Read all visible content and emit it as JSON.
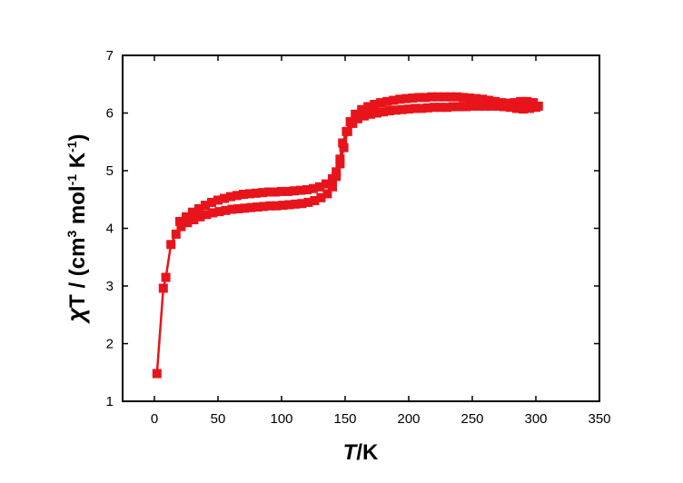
{
  "chart_data": {
    "type": "scatter",
    "xlabel": {
      "italic": "T",
      "rest": "/K"
    },
    "ylabel": {
      "chi": "χ",
      "t": "T",
      "p1": " / (cm",
      "s1": "3",
      "p2": " mol",
      "s2": "-1",
      "p3": " K",
      "s3": "-1",
      "p4": ")"
    },
    "xlim": [
      -25,
      350
    ],
    "ylim": [
      1,
      7
    ],
    "xticks": [
      0,
      50,
      100,
      150,
      200,
      250,
      300,
      350
    ],
    "yticks": [
      1,
      2,
      3,
      4,
      5,
      6,
      7
    ],
    "grid": false,
    "legend": "none",
    "colors": {
      "series": "#e8141b"
    },
    "series": [
      {
        "x": [
          2,
          7,
          9,
          13,
          17,
          21,
          26,
          31,
          36,
          41,
          46,
          51,
          56,
          61,
          66,
          71,
          76,
          81,
          86,
          91,
          96,
          101,
          106,
          111,
          116,
          121,
          126,
          131,
          136,
          140,
          143,
          146,
          149,
          152,
          156,
          160,
          165,
          170,
          175,
          180,
          185,
          190,
          195,
          200,
          205,
          210,
          215,
          220,
          225,
          230,
          235,
          240,
          245,
          250,
          255,
          260,
          265,
          270,
          275,
          280,
          285,
          290,
          295,
          300
        ],
        "y": [
          1.48,
          2.96,
          3.15,
          3.72,
          3.9,
          4.03,
          4.1,
          4.15,
          4.2,
          4.24,
          4.27,
          4.29,
          4.31,
          4.33,
          4.34,
          4.35,
          4.36,
          4.37,
          4.38,
          4.39,
          4.39,
          4.4,
          4.41,
          4.42,
          4.43,
          4.45,
          4.48,
          4.53,
          4.6,
          4.72,
          4.9,
          5.12,
          5.4,
          5.68,
          5.82,
          5.9,
          5.95,
          5.98,
          6.0,
          6.02,
          6.04,
          6.05,
          6.06,
          6.07,
          6.08,
          6.08,
          6.09,
          6.1,
          6.1,
          6.1,
          6.11,
          6.11,
          6.11,
          6.12,
          6.12,
          6.12,
          6.12,
          6.12,
          6.11,
          6.1,
          6.08,
          6.07,
          6.08,
          6.1
        ]
      },
      {
        "x": [
          20,
          25,
          30,
          35,
          40,
          45,
          50,
          55,
          60,
          65,
          70,
          75,
          80,
          85,
          90,
          95,
          100,
          105,
          110,
          115,
          120,
          125,
          130,
          135,
          140,
          143,
          146,
          148,
          151,
          154,
          158,
          163,
          168,
          173,
          178,
          183,
          188,
          193,
          198,
          203,
          208,
          213,
          218,
          223,
          228,
          233,
          238,
          243,
          248,
          253,
          258,
          263,
          268,
          273,
          278,
          283,
          288,
          293,
          298,
          302
        ],
        "y": [
          4.12,
          4.2,
          4.28,
          4.34,
          4.4,
          4.45,
          4.49,
          4.52,
          4.55,
          4.57,
          4.59,
          4.6,
          4.61,
          4.62,
          4.63,
          4.63,
          4.64,
          4.64,
          4.65,
          4.66,
          4.67,
          4.69,
          4.72,
          4.77,
          4.86,
          4.98,
          5.2,
          5.48,
          5.68,
          5.85,
          5.98,
          6.06,
          6.11,
          6.15,
          6.18,
          6.2,
          6.22,
          6.24,
          6.25,
          6.26,
          6.27,
          6.27,
          6.28,
          6.28,
          6.28,
          6.28,
          6.28,
          6.27,
          6.26,
          6.25,
          6.24,
          6.22,
          6.2,
          6.18,
          6.17,
          6.18,
          6.2,
          6.2,
          6.18,
          6.12
        ]
      }
    ]
  }
}
